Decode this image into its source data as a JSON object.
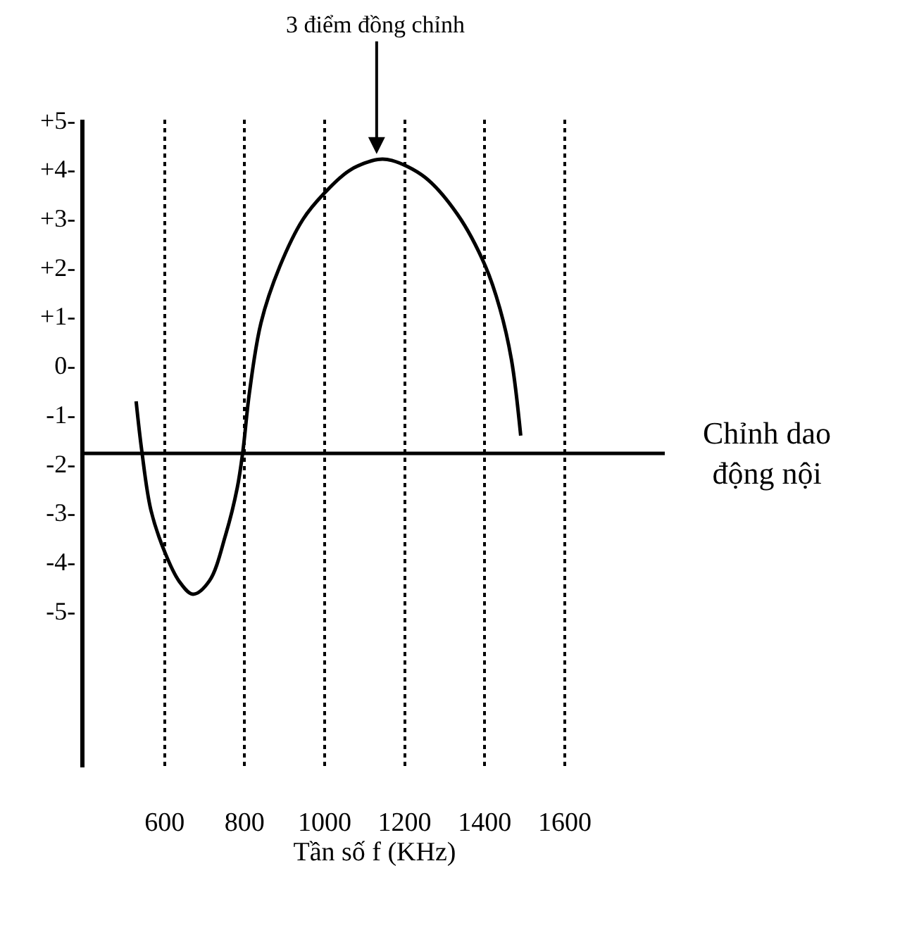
{
  "chart_data": {
    "type": "line",
    "xlabel": "Tần số f (KHz)",
    "x": [
      529,
      543,
      566,
      601,
      636,
      671,
      712,
      753,
      782,
      796,
      812,
      841,
      888,
      946,
      999,
      1063,
      1133,
      1168,
      1250,
      1332,
      1402,
      1438,
      1467,
      1490
    ],
    "series": [
      {
        "color": "#000000",
        "values": [
          -0.74,
          -1.74,
          -2.96,
          -3.82,
          -4.4,
          -4.67,
          -4.4,
          -3.45,
          -2.49,
          -1.74,
          -0.57,
          0.86,
          2.01,
          2.97,
          3.5,
          3.97,
          4.19,
          4.17,
          3.83,
          3.07,
          2.01,
          1.15,
          0.1,
          -1.44
        ]
      }
    ],
    "xlim": [
      400,
      1850
    ],
    "xticks": [
      600,
      800,
      1000,
      1200,
      1400,
      1600
    ],
    "ylim": [
      -8.2,
      5
    ],
    "yticks": [
      {
        "value": 5,
        "label": "+5-"
      },
      {
        "value": 4,
        "label": "+4-"
      },
      {
        "value": 3,
        "label": "+3-"
      },
      {
        "value": 2,
        "label": "+2-"
      },
      {
        "value": 1,
        "label": "+1-"
      },
      {
        "value": 0,
        "label": "0-"
      },
      {
        "value": -1,
        "label": "-1-"
      },
      {
        "value": -2,
        "label": "-2-"
      },
      {
        "value": -3,
        "label": "-3-"
      },
      {
        "value": -4,
        "label": "-4-"
      },
      {
        "value": -5,
        "label": "-5-"
      }
    ],
    "ref_lines": [
      {
        "axis": "y",
        "value": -1.8,
        "label": "Chỉnh dao\nđộng nội",
        "color": "#000000"
      }
    ],
    "annotations": [
      {
        "text": "3 điểm đồng chỉnh",
        "x": 1130,
        "y": 4.3
      }
    ],
    "grid": "x",
    "marker": "none",
    "line_style": "solid"
  }
}
